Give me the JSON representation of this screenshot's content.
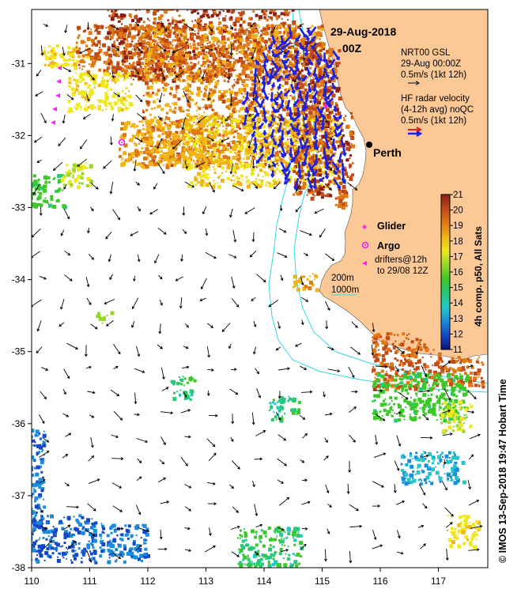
{
  "map": {
    "date": "29-Aug-2018",
    "time": "00Z",
    "city": "Perth",
    "x_ticks": [
      "110",
      "111",
      "112",
      "113",
      "114",
      "115",
      "116",
      "117"
    ],
    "y_ticks": [
      "-31",
      "-32",
      "-33",
      "-34",
      "-35",
      "-36",
      "-37",
      "-38"
    ],
    "lon_range": [
      110,
      117.85
    ],
    "lat_range": [
      -38,
      -30.25
    ]
  },
  "legend": {
    "gsl_line1": "NRT00 GSL",
    "gsl_line2": "29-Aug 00:00Z",
    "gsl_line3": "0.5m/s (1kt 12h)",
    "radar_line1": "HF radar velocity",
    "radar_line2": "(4-12h avg) noQC",
    "radar_line3": "0.5m/s (1kt 12h)",
    "glider_label": "Glider",
    "argo_label": "Argo",
    "drifter_line1": "drifters@12h",
    "drifter_line2": "to 29/08 12Z",
    "isobath_200": "200m",
    "isobath_1000": "1000m",
    "colour_gsl": "#000000",
    "colour_radar": "#1e22e0",
    "colour_glider": "#ff22ff",
    "colour_argo": "#ee22ee",
    "colour_land": "#fcc896",
    "colour_isobath": "#36d6e8"
  },
  "colorbar": {
    "label": "4h comp. p50, All Sats",
    "min": 11,
    "max": 21,
    "ticks": [
      "21",
      "20",
      "19",
      "18",
      "17",
      "16",
      "15",
      "14",
      "13",
      "12",
      "11"
    ],
    "colors": [
      "#0a1278",
      "#1448c8",
      "#1a8cdc",
      "#22c8c8",
      "#26c87a",
      "#3cc826",
      "#98d826",
      "#eee81c",
      "#f0b414",
      "#e07814",
      "#c04a18",
      "#8c1e12"
    ]
  },
  "credit": "© IMOS 13-Sep-2018 19:47 Hobart Time"
}
